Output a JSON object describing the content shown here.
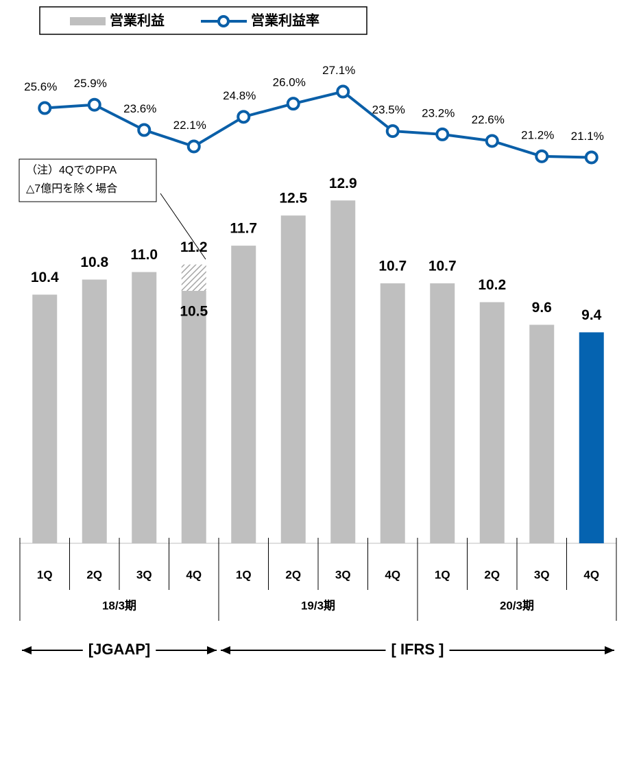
{
  "chart_data": {
    "type": "bar_line",
    "legend": [
      "営業利益",
      "営業利益率"
    ],
    "categories": [
      "1Q",
      "2Q",
      "3Q",
      "4Q",
      "1Q",
      "2Q",
      "3Q",
      "4Q",
      "1Q",
      "2Q",
      "3Q",
      "4Q"
    ],
    "groups": [
      "18/3期",
      "19/3期",
      "20/3期"
    ],
    "eras": [
      "[JGAAP]",
      "[ IFRS ]"
    ],
    "series": [
      {
        "name": "営業利益",
        "type": "bar",
        "color": "#bfbfbf",
        "colors": [
          "#bfbfbf",
          "#bfbfbf",
          "#bfbfbf",
          "#bfbfbf",
          "#bfbfbf",
          "#bfbfbf",
          "#bfbfbf",
          "#bfbfbf",
          "#bfbfbf",
          "#bfbfbf",
          "#bfbfbf",
          "#0563b0"
        ],
        "values": [
          10.4,
          10.8,
          11.0,
          11.2,
          11.7,
          12.5,
          12.9,
          10.7,
          10.7,
          10.2,
          9.6,
          9.4
        ],
        "value_labels": [
          "10.4",
          "10.8",
          "11.0",
          "11.2",
          "11.7",
          "12.5",
          "12.9",
          "10.7",
          "10.7",
          "10.2",
          "9.6",
          "9.4"
        ]
      },
      {
        "name": "営業利益率",
        "type": "line",
        "axis": "y2",
        "color": "#0a5fa8",
        "values": [
          25.6,
          25.9,
          23.6,
          22.1,
          24.8,
          26.0,
          27.1,
          23.5,
          23.2,
          22.6,
          21.2,
          21.1
        ],
        "value_labels": [
          "25.6%",
          "25.9%",
          "23.6%",
          "22.1%",
          "24.8%",
          "26.0%",
          "27.1%",
          "23.5%",
          "23.2%",
          "22.6%",
          "21.2%",
          "21.1%"
        ]
      }
    ],
    "annotation": {
      "text": [
        "（注）4QでのPPA",
        "△7億円を除く場合"
      ],
      "value": 10.5,
      "value_label": "10.5"
    },
    "ylim": [
      3.8,
      16.4
    ],
    "y2lim": [
      -14.1,
      29.2
    ]
  }
}
